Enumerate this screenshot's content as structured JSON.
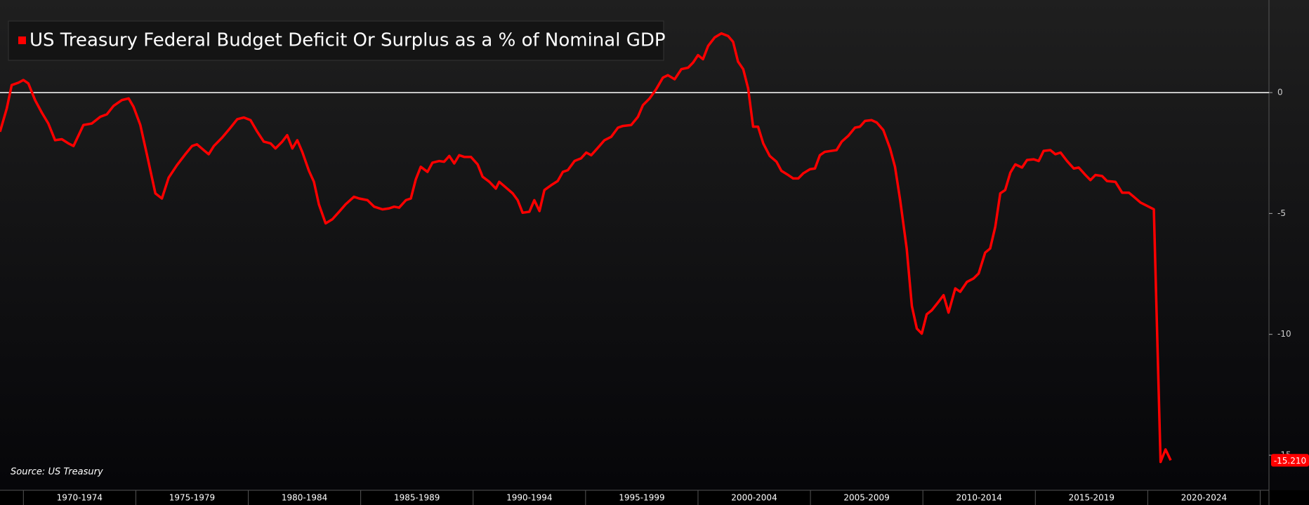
{
  "chart_data": {
    "type": "line",
    "source": "Source: US Treasury",
    "x": [
      1968.96,
      1969.26,
      1969.48,
      1969.78,
      1970.0,
      1970.22,
      1970.52,
      1970.82,
      1971.11,
      1971.41,
      1971.71,
      1972.0,
      1972.23,
      1972.67,
      1973.04,
      1973.42,
      1973.71,
      1974.01,
      1974.38,
      1974.68,
      1974.9,
      1975.2,
      1975.49,
      1975.87,
      1976.16,
      1976.46,
      1976.83,
      1977.2,
      1977.5,
      1977.72,
      1978.02,
      1978.24,
      1978.47,
      1978.84,
      1979.21,
      1979.51,
      1979.8,
      1980.1,
      1980.4,
      1980.69,
      1980.99,
      1981.21,
      1981.51,
      1981.73,
      1981.96,
      1982.18,
      1982.4,
      1982.7,
      1982.92,
      1983.14,
      1983.44,
      1983.74,
      1984.04,
      1984.33,
      1984.7,
      1984.93,
      1985.3,
      1985.6,
      1985.97,
      1986.26,
      1986.49,
      1986.71,
      1987.01,
      1987.23,
      1987.45,
      1987.67,
      1987.97,
      1988.19,
      1988.49,
      1988.71,
      1988.94,
      1989.16,
      1989.38,
      1989.6,
      1989.9,
      1990.2,
      1990.42,
      1990.72,
      1991.01,
      1991.16,
      1991.46,
      1991.76,
      1991.98,
      1992.2,
      1992.5,
      1992.72,
      1992.95,
      1993.17,
      1993.47,
      1993.76,
      1993.99,
      1994.21,
      1994.51,
      1994.8,
      1995.03,
      1995.25,
      1995.55,
      1995.84,
      1996.14,
      1996.44,
      1996.66,
      1997.03,
      1997.33,
      1997.55,
      1997.85,
      1998.14,
      1998.44,
      1998.66,
      1998.96,
      1999.26,
      1999.56,
      1999.78,
      2000.0,
      2000.22,
      2000.45,
      2000.74,
      2001.04,
      2001.34,
      2001.56,
      2001.78,
      2002.01,
      2002.23,
      2002.45,
      2002.67,
      2002.9,
      2003.19,
      2003.49,
      2003.71,
      2004.01,
      2004.23,
      2004.46,
      2004.68,
      2004.98,
      2005.2,
      2005.42,
      2005.64,
      2005.94,
      2006.16,
      2006.39,
      2006.68,
      2006.98,
      2007.2,
      2007.43,
      2007.72,
      2007.95,
      2008.24,
      2008.54,
      2008.76,
      2008.99,
      2009.28,
      2009.51,
      2009.73,
      2009.95,
      2010.17,
      2010.4,
      2010.69,
      2010.92,
      2011.14,
      2011.44,
      2011.66,
      2011.96,
      2012.25,
      2012.48,
      2012.77,
      2012.99,
      2013.22,
      2013.44,
      2013.66,
      2013.89,
      2014.11,
      2014.41,
      2014.63,
      2014.93,
      2015.15,
      2015.37,
      2015.67,
      2015.89,
      2016.12,
      2016.41,
      2016.71,
      2016.93,
      2017.23,
      2017.45,
      2017.67,
      2017.97,
      2018.19,
      2018.56,
      2018.86,
      2019.16,
      2019.38,
      2019.68,
      2019.98,
      2020.27,
      2020.57,
      2020.79,
      2021.02
    ],
    "series": [
      {
        "name": "US Treasury Federal Budget Deficit Or Surplus as a % of Nominal GDP",
        "color": "#ff0000",
        "values": [
          -1.62,
          -0.66,
          0.31,
          0.41,
          0.52,
          0.38,
          -0.31,
          -0.83,
          -1.28,
          -1.97,
          -1.93,
          -2.1,
          -2.21,
          -1.34,
          -1.28,
          -1.0,
          -0.9,
          -0.55,
          -0.31,
          -0.24,
          -0.59,
          -1.34,
          -2.55,
          -4.17,
          -4.38,
          -3.52,
          -3.0,
          -2.55,
          -2.21,
          -2.14,
          -2.38,
          -2.55,
          -2.21,
          -1.86,
          -1.45,
          -1.1,
          -1.03,
          -1.14,
          -1.62,
          -2.03,
          -2.1,
          -2.31,
          -2.03,
          -1.76,
          -2.31,
          -1.97,
          -2.45,
          -3.24,
          -3.69,
          -4.62,
          -5.41,
          -5.24,
          -4.93,
          -4.62,
          -4.31,
          -4.38,
          -4.45,
          -4.72,
          -4.83,
          -4.79,
          -4.72,
          -4.76,
          -4.45,
          -4.38,
          -3.59,
          -3.07,
          -3.28,
          -2.9,
          -2.83,
          -2.86,
          -2.62,
          -2.93,
          -2.59,
          -2.66,
          -2.66,
          -2.97,
          -3.48,
          -3.69,
          -3.97,
          -3.69,
          -3.93,
          -4.17,
          -4.45,
          -4.97,
          -4.93,
          -4.45,
          -4.9,
          -4.03,
          -3.83,
          -3.66,
          -3.28,
          -3.21,
          -2.83,
          -2.72,
          -2.48,
          -2.59,
          -2.28,
          -1.97,
          -1.83,
          -1.45,
          -1.38,
          -1.34,
          -1.0,
          -0.52,
          -0.24,
          0.14,
          0.62,
          0.72,
          0.55,
          0.97,
          1.03,
          1.24,
          1.55,
          1.38,
          1.93,
          2.28,
          2.45,
          2.34,
          2.1,
          1.28,
          0.97,
          0.17,
          -1.41,
          -1.41,
          -2.1,
          -2.62,
          -2.86,
          -3.24,
          -3.41,
          -3.55,
          -3.55,
          -3.34,
          -3.17,
          -3.14,
          -2.59,
          -2.45,
          -2.41,
          -2.38,
          -2.03,
          -1.79,
          -1.45,
          -1.41,
          -1.17,
          -1.14,
          -1.24,
          -1.55,
          -2.31,
          -3.07,
          -4.45,
          -6.45,
          -8.83,
          -9.76,
          -9.97,
          -9.17,
          -9.0,
          -8.66,
          -8.38,
          -9.1,
          -8.1,
          -8.24,
          -7.83,
          -7.69,
          -7.48,
          -6.62,
          -6.45,
          -5.55,
          -4.17,
          -4.03,
          -3.31,
          -2.97,
          -3.1,
          -2.79,
          -2.76,
          -2.83,
          -2.41,
          -2.38,
          -2.55,
          -2.48,
          -2.83,
          -3.14,
          -3.1,
          -3.41,
          -3.62,
          -3.41,
          -3.45,
          -3.66,
          -3.69,
          -4.14,
          -4.14,
          -4.31,
          -4.55,
          -4.69,
          -4.83,
          -15.28,
          -14.76,
          -15.21
        ],
        "last_value_label": "-15.210"
      }
    ],
    "xlim": [
      1968.96,
      2025.39
    ],
    "xticks": [
      {
        "value": 1972.5,
        "label": "1970-1974"
      },
      {
        "value": 1977.5,
        "label": "1975-1979"
      },
      {
        "value": 1982.5,
        "label": "1980-1984"
      },
      {
        "value": 1987.5,
        "label": "1985-1989"
      },
      {
        "value": 1992.5,
        "label": "1990-1994"
      },
      {
        "value": 1997.5,
        "label": "1995-1999"
      },
      {
        "value": 2002.5,
        "label": "2000-2004"
      },
      {
        "value": 2007.5,
        "label": "2005-2009"
      },
      {
        "value": 2012.5,
        "label": "2010-2014"
      },
      {
        "value": 2017.5,
        "label": "2015-2019"
      },
      {
        "value": 2022.5,
        "label": "2020-2024"
      }
    ],
    "ylim": [
      -16.45,
      3.83
    ],
    "yticks": [
      -15,
      -10,
      -5,
      0
    ],
    "zero_line": true
  }
}
